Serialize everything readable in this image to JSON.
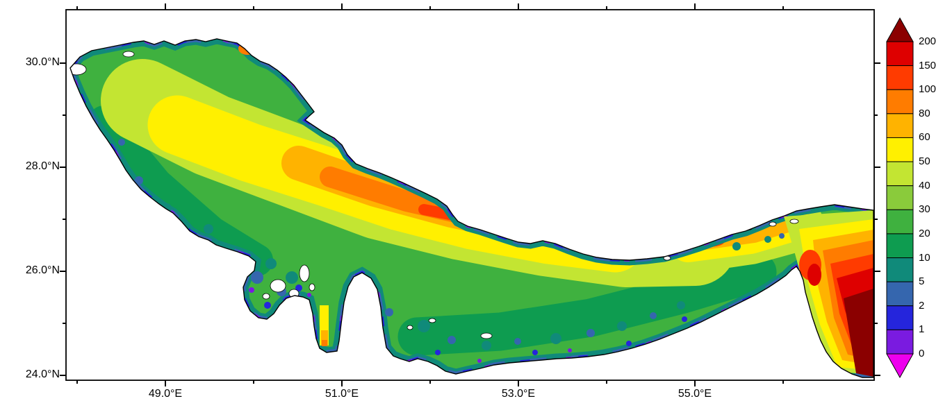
{
  "page": {
    "background": "#FFFFFF"
  },
  "chart_data": {
    "type": "heatmap",
    "title": "",
    "region": "Persian Gulf, Strait of Hormuz and western Gulf of Oman",
    "description": "Color-shaded gridded field over the Persian Gulf. Shallow coastal fringes are purple/blue/teal (0-10), most of the basin is green (10-40), the central axis is yellow to orange (50-100), the deep trough toward the Strait of Hormuz is red-orange to red (100-200), and the Gulf of Oman in the southeast corner exceeds 200 (dark red).",
    "x_axis": {
      "label": "",
      "ticks_major": {
        "values": [
          49,
          51,
          53,
          55
        ],
        "labels": [
          "49.0°E",
          "51.0°E",
          "53.0°E",
          "55.0°E"
        ]
      },
      "ticks_minor": [
        48,
        50,
        52,
        54,
        56
      ],
      "range": [
        47.87,
        57.03
      ]
    },
    "y_axis": {
      "label": "",
      "ticks_major": {
        "values": [
          24,
          26,
          28,
          30
        ],
        "labels": [
          "24.0°N",
          "26.0°N",
          "28.0°N",
          "30.0°N"
        ]
      },
      "ticks_minor": [
        25,
        27,
        29
      ],
      "range": [
        23.91,
        31.03
      ]
    },
    "colorbar": {
      "orientation": "vertical",
      "position": "right",
      "extend": "both",
      "boundaries": [
        0,
        1,
        2,
        5,
        10,
        20,
        30,
        40,
        50,
        60,
        80,
        100,
        150,
        200
      ],
      "labels_top_to_bottom": [
        "200",
        "150",
        "100",
        "80",
        "60",
        "50",
        "40",
        "30",
        "20",
        "10",
        "5",
        "2",
        "1",
        "0"
      ]
    },
    "representative_values": [
      {
        "lon": 48.5,
        "lat": 29.8,
        "value": 20
      },
      {
        "lon": 50.0,
        "lat": 28.5,
        "value": 50
      },
      {
        "lon": 51.5,
        "lat": 27.5,
        "value": 70
      },
      {
        "lon": 52.5,
        "lat": 26.9,
        "value": 90
      },
      {
        "lon": 53.5,
        "lat": 26.6,
        "value": 120
      },
      {
        "lon": 55.0,
        "lat": 26.3,
        "value": 100
      },
      {
        "lon": 51.2,
        "lat": 25.2,
        "value": "land (Qatar peninsula, blank)"
      },
      {
        "lon": 53.5,
        "lat": 24.8,
        "value": 15
      },
      {
        "lon": 56.4,
        "lat": 26.2,
        "value": 150
      },
      {
        "lon": 56.8,
        "lat": 24.7,
        "value": 200
      }
    ]
  },
  "palette": {
    "over200": "#8B0000",
    "r150_200": "#DE0000",
    "r100_150": "#FF3B00",
    "r80_100": "#FF7C00",
    "r60_80": "#FFB300",
    "y50_60": "#FFF000",
    "yg40_50": "#C3E532",
    "g30_40": "#8ACB3B",
    "g20_30": "#3FB13F",
    "g10_20": "#0E9C50",
    "t5_10": "#108A7A",
    "b2_5": "#3566AE",
    "b1_2": "#2525DC",
    "v0_1": "#7A1BE0",
    "under0": "#EE00EE",
    "land": "#FFFFFF",
    "coastline": "#000000",
    "frame": "#000000"
  },
  "colorbar": {
    "labels": [
      "200",
      "150",
      "100",
      "80",
      "60",
      "50",
      "40",
      "30",
      "20",
      "10",
      "5",
      "2",
      "1",
      "0"
    ]
  }
}
